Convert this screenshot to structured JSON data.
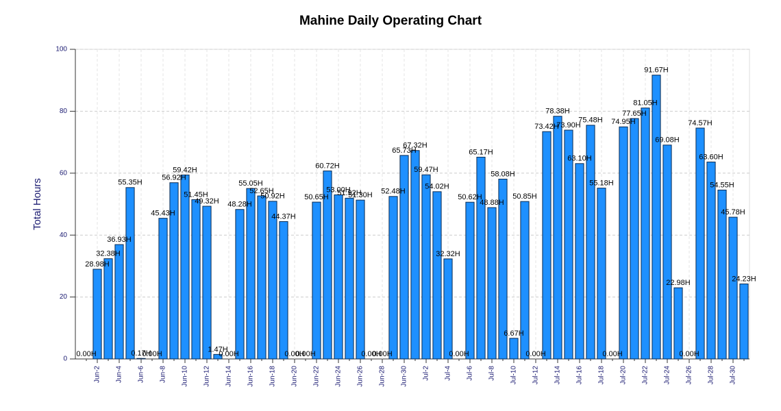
{
  "chart_data": {
    "type": "bar",
    "title": "Mahine Daily Operating Chart",
    "y_label": "Total Hours",
    "categories": [
      null,
      "Jun-2",
      null,
      "Jun-4",
      null,
      "Jun-6",
      null,
      "Jun-8",
      null,
      "Jun-10",
      null,
      "Jun-12",
      null,
      "Jun-14",
      null,
      "Jun-16",
      null,
      "Jun-18",
      null,
      "Jun-20",
      null,
      "Jun-22",
      null,
      "Jun-24",
      null,
      "Jun-26",
      null,
      "Jun-28",
      null,
      "Jun-30",
      null,
      "Jul-2",
      null,
      "Jul-4",
      null,
      "Jul-6",
      null,
      "Jul-8",
      null,
      "Jul-10",
      null,
      "Jul-12",
      null,
      "Jul-14",
      null,
      "Jul-16",
      null,
      "Jul-18",
      null,
      "Jul-20",
      null,
      "Jul-22",
      null,
      "Jul-24",
      null,
      "Jul-26",
      null,
      "Jul-28",
      null,
      "Jul-30",
      null
    ],
    "values": [
      0,
      28.98,
      32.38,
      36.93,
      55.35,
      0.17,
      0,
      45.43,
      56.92,
      59.42,
      51.45,
      49.32,
      1.47,
      0,
      48.28,
      55.05,
      52.65,
      50.92,
      44.37,
      0,
      0,
      50.65,
      60.72,
      53.0,
      51.92,
      51.3,
      0,
      0,
      52.48,
      65.73,
      67.32,
      59.47,
      54.02,
      32.32,
      0,
      50.62,
      65.17,
      48.88,
      58.08,
      6.67,
      50.85,
      0,
      73.42,
      78.38,
      73.9,
      63.1,
      75.48,
      55.18,
      0,
      74.95,
      77.65,
      81.05,
      91.67,
      69.08,
      22.98,
      0,
      74.57,
      63.6,
      54.55,
      45.78,
      24.23
    ],
    "value_labels": [
      "0.00H",
      "28.98H",
      "32.38H",
      "36.93H",
      "55.35H",
      "0.17H",
      "0.00H",
      "45.43H",
      "56.92H",
      "59.42H",
      "51.45H",
      "49.32H",
      "1.47H",
      "0.00H",
      "48.28H",
      "55.05H",
      "52.65H",
      "50.92H",
      "44.37H",
      "0.00H",
      "0.00H",
      "50.65H",
      "60.72H",
      "53.00H",
      "51.92H",
      "51.30H",
      "0.00H",
      "0.00H",
      "52.48H",
      "65.73H",
      "67.32H",
      "59.47H",
      "54.02H",
      "32.32H",
      "0.00H",
      "50.62H",
      "65.17H",
      "48.88H",
      "58.08H",
      "6.67H",
      "50.85H",
      "0.00H",
      "73.42H",
      "78.38H",
      "73.90H",
      "63.10H",
      "75.48H",
      "55.18H",
      "0.00H",
      "74.95H",
      "77.65H",
      "81.05H",
      "91.67H",
      "69.08H",
      "22.98H",
      "0.00H",
      "74.57H",
      "63.60H",
      "54.55H",
      "45.78H",
      "24.23H"
    ],
    "color": "#1e90ff",
    "ylim": [
      0,
      100
    ],
    "yticks": [
      0,
      20,
      40,
      60,
      80,
      100
    ],
    "grid": true
  }
}
